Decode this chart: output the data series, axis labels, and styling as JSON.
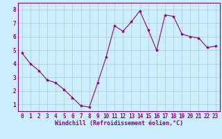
{
  "x": [
    0,
    1,
    2,
    3,
    4,
    5,
    6,
    7,
    8,
    9,
    10,
    11,
    12,
    13,
    14,
    15,
    16,
    17,
    18,
    19,
    20,
    21,
    22,
    23
  ],
  "y": [
    4.8,
    4.0,
    3.5,
    2.8,
    2.6,
    2.1,
    1.5,
    0.9,
    0.8,
    2.6,
    4.5,
    6.8,
    6.4,
    7.1,
    7.9,
    6.5,
    5.0,
    7.6,
    7.5,
    6.2,
    6.0,
    5.9,
    5.2,
    5.3
  ],
  "line_color": "#880088",
  "marker": "*",
  "marker_size": 3,
  "bg_color": "#cceeff",
  "grid_color": "#aacccc",
  "xlabel": "Windchill (Refroidissement éolien,°C)",
  "xlabel_color": "#880088",
  "xlabel_fontsize": 6.0,
  "ylabel_ticks": [
    1,
    2,
    3,
    4,
    5,
    6,
    7,
    8
  ],
  "xtick_labels": [
    "0",
    "1",
    "2",
    "3",
    "4",
    "5",
    "6",
    "7",
    "8",
    "9",
    "10",
    "11",
    "12",
    "13",
    "14",
    "15",
    "16",
    "17",
    "18",
    "19",
    "20",
    "21",
    "22",
    "23"
  ],
  "ylim": [
    0.5,
    8.5
  ],
  "xlim": [
    -0.5,
    23.5
  ],
  "tick_color": "#880088",
  "tick_fontsize": 5.5,
  "spine_color": "#880088",
  "linewidth": 0.8
}
